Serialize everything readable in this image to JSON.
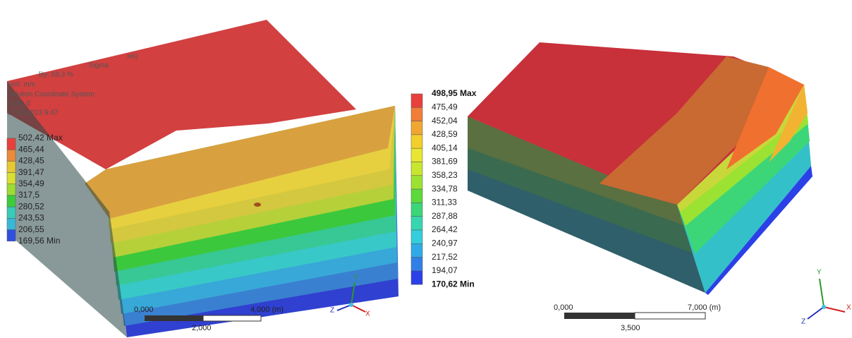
{
  "left_panel": {
    "info_lines": [
      "xis)",
      ": Sigma",
      "lity: 68,3 %",
      "Unit: m/s",
      "Solution Coordinate System",
      "Time: 0",
      "17.06.2013 9:47"
    ],
    "legend": {
      "labels": [
        "502,42 Max",
        "465,44",
        "428,45",
        "391,47",
        "354,49",
        "317,5",
        "280,52",
        "243,53",
        "206,55",
        "169,56 Min"
      ],
      "colors": [
        "#e8403c",
        "#eb8a3a",
        "#e8c832",
        "#d8e032",
        "#9cdc34",
        "#3ccc3c",
        "#38ccb8",
        "#38b8d8",
        "#3050e0"
      ]
    },
    "scale_bar": {
      "start": "0,000",
      "end": "4,000 (m)",
      "mid": "2,000"
    },
    "triad": {
      "x": "X",
      "y": "Y",
      "z": "Z"
    }
  },
  "right_panel": {
    "legend": {
      "labels": [
        "498,95 Max",
        "475,49",
        "452,04",
        "428,59",
        "405,14",
        "381,69",
        "358,23",
        "334,78",
        "311,33",
        "287,88",
        "264,42",
        "240,97",
        "217,52",
        "194,07",
        "170,62 Min"
      ],
      "colors": [
        "#e8403c",
        "#f07d3a",
        "#f2a632",
        "#f1cf2c",
        "#e8e632",
        "#c8e62e",
        "#9ce232",
        "#5cda3c",
        "#3cd678",
        "#36d6b0",
        "#34cedc",
        "#30aae6",
        "#2f80e6",
        "#2b40e6"
      ]
    },
    "scale_bar": {
      "start": "0,000",
      "end": "7,000 (m)",
      "mid": "3,500"
    },
    "triad": {
      "x": "X",
      "y": "Y",
      "z": "Z"
    }
  }
}
